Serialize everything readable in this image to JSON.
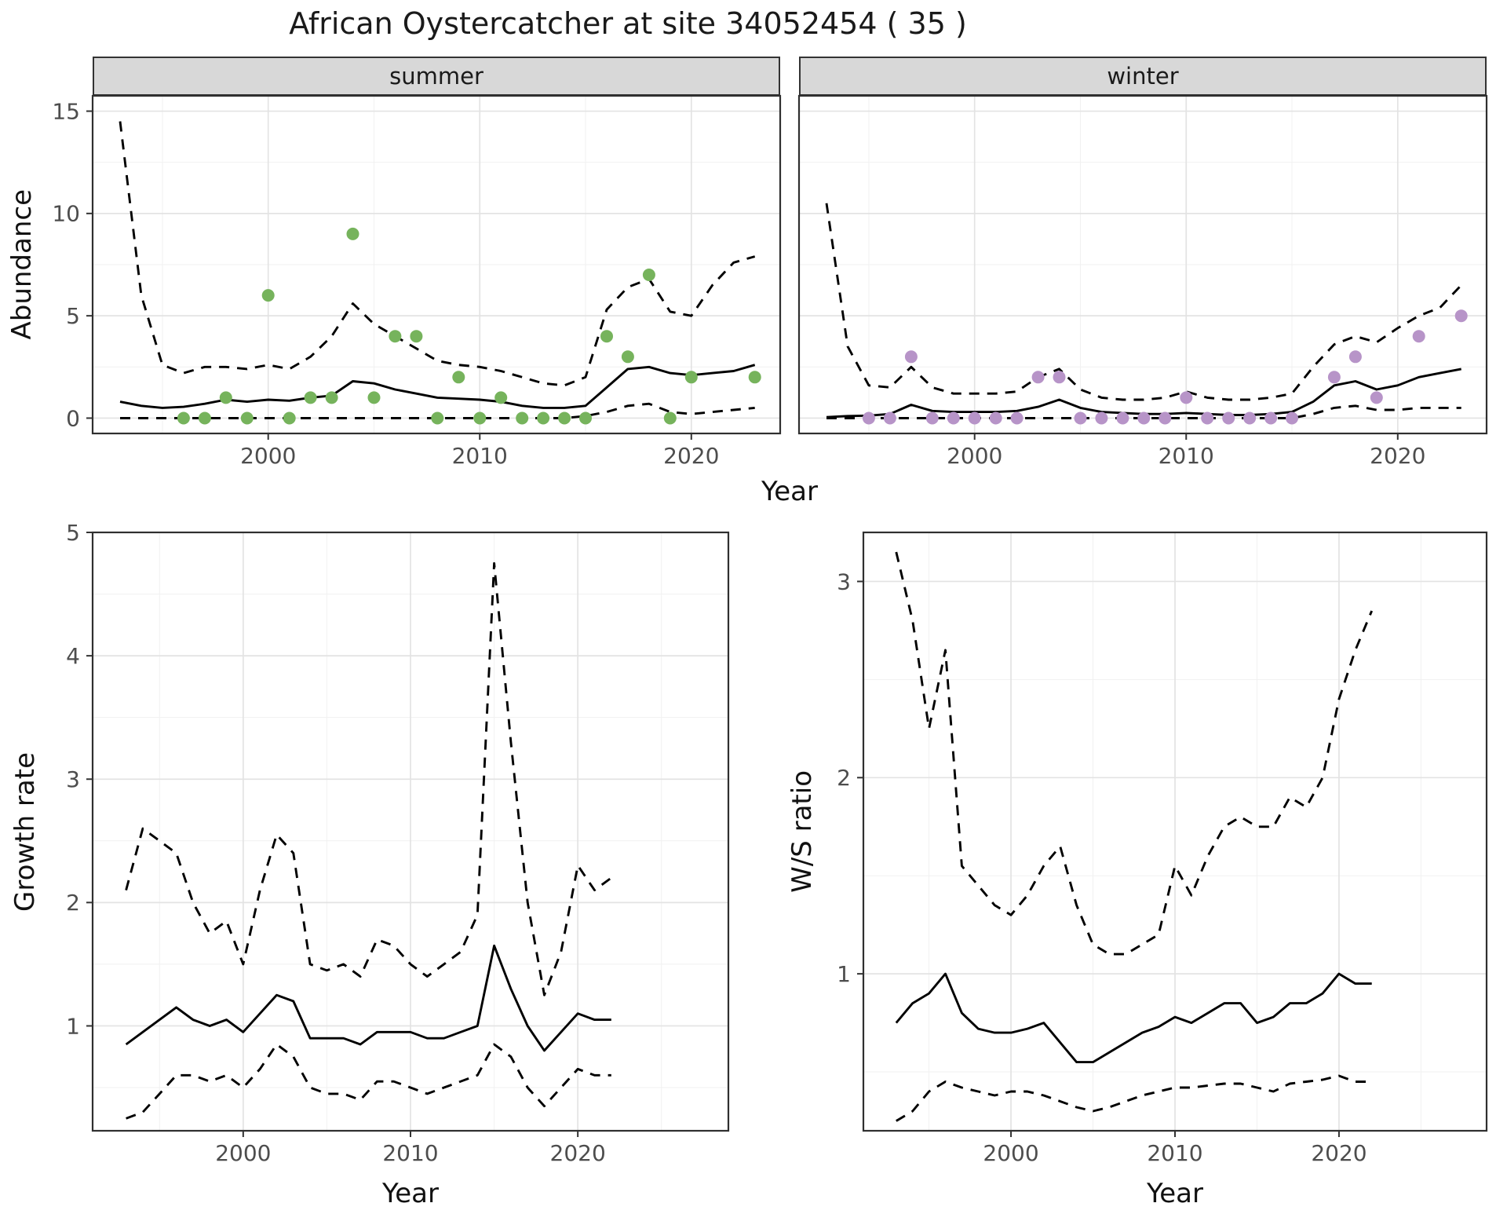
{
  "title": "African Oystercatcher at site 34052454 ( 35 )",
  "top_row": {
    "ylabel": "Abundance",
    "xlabel": "Year",
    "facets": [
      "summer",
      "winter"
    ]
  },
  "bottom_left": {
    "ylabel": "Growth rate",
    "xlabel": "Year"
  },
  "bottom_right": {
    "ylabel": "W/S ratio",
    "xlabel": "Year"
  },
  "colors": {
    "summer_point": "#76b35c",
    "winter_point": "#b794c8",
    "line": "#000000",
    "grid_major": "#e3e3e3",
    "grid_minor": "#f1f1f1",
    "strip_bg": "#d8d8d8",
    "panel_border": "#2f2f2f"
  },
  "chart_data": [
    {
      "id": "abundance-summer",
      "type": "line",
      "title": "summer",
      "xlabel": "Year",
      "ylabel": "Abundance",
      "xlim": [
        1991.7,
        2024.2
      ],
      "ylim": [
        -0.75,
        15.75
      ],
      "xticks": [
        2000,
        2010,
        2020
      ],
      "xtick_labels": [
        "2000",
        "2010",
        "2020"
      ],
      "xminor": [
        1995,
        2005,
        2015
      ],
      "yticks": [
        0,
        5,
        10,
        15
      ],
      "ytick_labels": [
        "0",
        "5",
        "10",
        "15"
      ],
      "yminor": [
        2.5,
        7.5,
        12.5
      ],
      "show_y_tick_labels": true,
      "fit_years": [
        1993,
        1994,
        1995,
        1996,
        1997,
        1998,
        1999,
        2000,
        2001,
        2002,
        2003,
        2004,
        2005,
        2006,
        2007,
        2008,
        2009,
        2010,
        2011,
        2012,
        2013,
        2014,
        2015,
        2016,
        2017,
        2018,
        2019,
        2020,
        2021,
        2022,
        2023
      ],
      "mean": [
        0.8,
        0.6,
        0.5,
        0.55,
        0.7,
        0.9,
        0.8,
        0.9,
        0.85,
        1.0,
        1.1,
        1.8,
        1.7,
        1.4,
        1.2,
        1.0,
        0.95,
        0.9,
        0.8,
        0.6,
        0.5,
        0.5,
        0.6,
        1.5,
        2.4,
        2.5,
        2.2,
        2.1,
        2.2,
        2.3,
        2.6
      ],
      "upper": [
        14.5,
        6.0,
        2.6,
        2.2,
        2.5,
        2.5,
        2.4,
        2.6,
        2.4,
        3.0,
        4.0,
        5.6,
        4.6,
        4.0,
        3.4,
        2.8,
        2.6,
        2.5,
        2.3,
        2.0,
        1.7,
        1.6,
        2.0,
        5.3,
        6.4,
        6.8,
        5.2,
        5.0,
        6.5,
        7.6,
        7.9
      ],
      "lower": [
        0,
        0,
        0,
        0,
        0,
        0,
        0,
        0,
        0,
        0,
        0,
        0,
        0,
        0,
        0,
        0,
        0,
        0,
        0,
        0,
        0,
        0,
        0.1,
        0.3,
        0.6,
        0.7,
        0.3,
        0.2,
        0.3,
        0.4,
        0.5
      ],
      "obs_years": [
        1996,
        1997,
        1998,
        1999,
        2000,
        2001,
        2002,
        2003,
        2004,
        2005,
        2006,
        2007,
        2008,
        2009,
        2010,
        2011,
        2012,
        2013,
        2014,
        2015,
        2016,
        2017,
        2018,
        2019,
        2020,
        2023
      ],
      "obs_values": [
        0,
        0,
        1,
        0,
        6,
        0,
        1,
        1,
        9,
        1,
        4,
        4,
        0,
        2,
        0,
        1,
        0,
        0,
        0,
        0,
        4,
        3,
        7,
        0,
        2,
        2
      ],
      "point_color": "#76b35c"
    },
    {
      "id": "abundance-winter",
      "type": "line",
      "title": "winter",
      "xlabel": "Year",
      "ylabel": "Abundance",
      "xlim": [
        1991.7,
        2024.2
      ],
      "ylim": [
        -0.75,
        15.75
      ],
      "xticks": [
        2000,
        2010,
        2020
      ],
      "xtick_labels": [
        "2000",
        "2010",
        "2020"
      ],
      "xminor": [
        1995,
        2005,
        2015
      ],
      "yticks": [
        0,
        5,
        10,
        15
      ],
      "ytick_labels": [
        "0",
        "5",
        "10",
        "15"
      ],
      "yminor": [
        2.5,
        7.5,
        12.5
      ],
      "show_y_tick_labels": false,
      "fit_years": [
        1993,
        1994,
        1995,
        1996,
        1997,
        1998,
        1999,
        2000,
        2001,
        2002,
        2003,
        2004,
        2005,
        2006,
        2007,
        2008,
        2009,
        2010,
        2011,
        2012,
        2013,
        2014,
        2015,
        2016,
        2017,
        2018,
        2019,
        2020,
        2021,
        2022,
        2023
      ],
      "mean": [
        0.05,
        0.1,
        0.12,
        0.2,
        0.65,
        0.35,
        0.3,
        0.3,
        0.3,
        0.35,
        0.55,
        0.9,
        0.5,
        0.3,
        0.25,
        0.2,
        0.2,
        0.25,
        0.2,
        0.15,
        0.15,
        0.2,
        0.3,
        0.8,
        1.6,
        1.8,
        1.4,
        1.6,
        2.0,
        2.2,
        2.4
      ],
      "upper": [
        10.5,
        3.5,
        1.6,
        1.5,
        2.5,
        1.5,
        1.2,
        1.2,
        1.2,
        1.3,
        2.0,
        2.4,
        1.4,
        1.0,
        0.9,
        0.9,
        1.0,
        1.3,
        1.0,
        0.9,
        0.9,
        1.0,
        1.2,
        2.5,
        3.6,
        4.0,
        3.7,
        4.4,
        5.0,
        5.4,
        6.5
      ],
      "lower": [
        0,
        0,
        0,
        0,
        0,
        0,
        0,
        0,
        0,
        0,
        0,
        0,
        0,
        0,
        0,
        0,
        0,
        0,
        0,
        0,
        0,
        0,
        0,
        0.2,
        0.5,
        0.6,
        0.4,
        0.4,
        0.5,
        0.5,
        0.5
      ],
      "obs_years": [
        1995,
        1996,
        1997,
        1998,
        1999,
        2000,
        2001,
        2002,
        2003,
        2004,
        2005,
        2006,
        2007,
        2008,
        2009,
        2010,
        2011,
        2012,
        2013,
        2014,
        2015,
        2017,
        2018,
        2019,
        2021,
        2023
      ],
      "obs_values": [
        0,
        0,
        3,
        0,
        0,
        0,
        0,
        0,
        2,
        2,
        0,
        0,
        0,
        0,
        0,
        1,
        0,
        0,
        0,
        0,
        0,
        2,
        3,
        1,
        4,
        5
      ],
      "point_color": "#b794c8"
    },
    {
      "id": "growth",
      "type": "line",
      "title": "Growth rate",
      "xlabel": "Year",
      "ylabel": "Growth rate",
      "xlim": [
        1991,
        2029
      ],
      "ylim": [
        0.15,
        5.0
      ],
      "xticks": [
        2000,
        2010,
        2020
      ],
      "xtick_labels": [
        "2000",
        "2010",
        "2020"
      ],
      "xminor": [
        1995,
        2005,
        2015,
        2025
      ],
      "yticks": [
        1,
        2,
        3,
        4,
        5
      ],
      "ytick_labels": [
        "1",
        "2",
        "3",
        "4",
        "5"
      ],
      "yminor": [
        0.5,
        1.5,
        2.5,
        3.5,
        4.5
      ],
      "show_y_tick_labels": true,
      "fit_years": [
        1993,
        1994,
        1995,
        1996,
        1997,
        1998,
        1999,
        2000,
        2001,
        2002,
        2003,
        2004,
        2005,
        2006,
        2007,
        2008,
        2009,
        2010,
        2011,
        2012,
        2013,
        2014,
        2015,
        2016,
        2017,
        2018,
        2019,
        2020,
        2021,
        2022
      ],
      "mean": [
        0.85,
        0.95,
        1.05,
        1.15,
        1.05,
        1.0,
        1.05,
        0.95,
        1.1,
        1.25,
        1.2,
        0.9,
        0.9,
        0.9,
        0.85,
        0.95,
        0.95,
        0.95,
        0.9,
        0.9,
        0.95,
        1.0,
        1.65,
        1.3,
        1.0,
        0.8,
        0.95,
        1.1,
        1.05,
        1.05
      ],
      "upper": [
        2.1,
        2.6,
        2.5,
        2.4,
        2.0,
        1.75,
        1.85,
        1.5,
        2.1,
        2.55,
        2.4,
        1.5,
        1.45,
        1.5,
        1.4,
        1.7,
        1.65,
        1.5,
        1.4,
        1.5,
        1.6,
        1.9,
        4.75,
        3.3,
        2.0,
        1.25,
        1.6,
        2.3,
        2.1,
        2.2
      ],
      "lower": [
        0.25,
        0.3,
        0.45,
        0.6,
        0.6,
        0.55,
        0.6,
        0.5,
        0.65,
        0.85,
        0.75,
        0.5,
        0.45,
        0.45,
        0.4,
        0.55,
        0.55,
        0.5,
        0.45,
        0.5,
        0.55,
        0.6,
        0.85,
        0.75,
        0.5,
        0.35,
        0.5,
        0.65,
        0.6,
        0.6
      ]
    },
    {
      "id": "ws",
      "type": "line",
      "title": "W/S ratio",
      "xlabel": "Year",
      "ylabel": "W/S ratio",
      "xlim": [
        1991,
        2029
      ],
      "ylim": [
        0.2,
        3.25
      ],
      "xticks": [
        2000,
        2010,
        2020
      ],
      "xtick_labels": [
        "2000",
        "2010",
        "2020"
      ],
      "xminor": [
        1995,
        2005,
        2015,
        2025
      ],
      "yticks": [
        1,
        2,
        3
      ],
      "ytick_labels": [
        "1",
        "2",
        "3"
      ],
      "yminor": [
        0.5,
        1.5,
        2.5
      ],
      "show_y_tick_labels": true,
      "fit_years": [
        1993,
        1994,
        1995,
        1996,
        1997,
        1998,
        1999,
        2000,
        2001,
        2002,
        2003,
        2004,
        2005,
        2006,
        2007,
        2008,
        2009,
        2010,
        2011,
        2012,
        2013,
        2014,
        2015,
        2016,
        2017,
        2018,
        2019,
        2020,
        2021,
        2022
      ],
      "mean": [
        0.75,
        0.85,
        0.9,
        1.0,
        0.8,
        0.72,
        0.7,
        0.7,
        0.72,
        0.75,
        0.65,
        0.55,
        0.55,
        0.6,
        0.65,
        0.7,
        0.73,
        0.78,
        0.75,
        0.8,
        0.85,
        0.85,
        0.75,
        0.78,
        0.85,
        0.85,
        0.9,
        1.0,
        0.95,
        0.95
      ],
      "upper": [
        3.15,
        2.8,
        2.25,
        2.65,
        1.55,
        1.45,
        1.35,
        1.3,
        1.4,
        1.55,
        1.65,
        1.35,
        1.15,
        1.1,
        1.1,
        1.15,
        1.2,
        1.55,
        1.4,
        1.6,
        1.75,
        1.8,
        1.75,
        1.75,
        1.9,
        1.85,
        2.0,
        2.4,
        2.65,
        2.85
      ],
      "lower": [
        0.25,
        0.3,
        0.4,
        0.45,
        0.42,
        0.4,
        0.38,
        0.4,
        0.4,
        0.38,
        0.35,
        0.32,
        0.3,
        0.32,
        0.35,
        0.38,
        0.4,
        0.42,
        0.42,
        0.43,
        0.44,
        0.44,
        0.42,
        0.4,
        0.44,
        0.45,
        0.46,
        0.48,
        0.45,
        0.45
      ]
    }
  ]
}
